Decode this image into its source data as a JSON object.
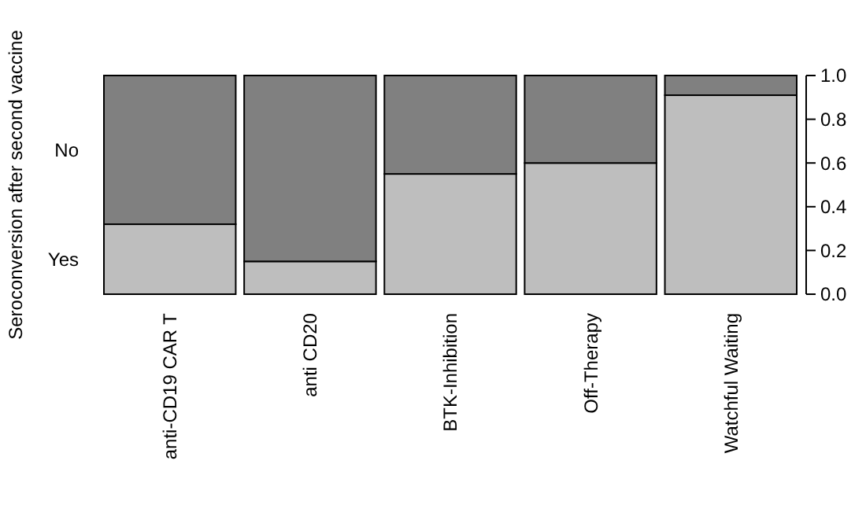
{
  "chart_data": {
    "type": "bar",
    "stacked": true,
    "ylabel": "Seroconversion after second vaccine",
    "categories": [
      "anti-CD19 CAR T",
      "anti CD20",
      "BTK-Inhibition",
      "Off-Therapy",
      "Watchful Waiting"
    ],
    "series": [
      {
        "name": "Yes",
        "color": "#bebebe",
        "values": [
          0.32,
          0.15,
          0.55,
          0.6,
          0.91
        ]
      },
      {
        "name": "No",
        "color": "#808080",
        "values": [
          0.68,
          0.85,
          0.45,
          0.4,
          0.09
        ]
      }
    ],
    "ylim": [
      0,
      1
    ],
    "yticks": [
      {
        "value": 0,
        "label": "0.0"
      },
      {
        "value": 0.2,
        "label": "0.2"
      },
      {
        "value": 0.4,
        "label": "0.4"
      },
      {
        "value": 0.6,
        "label": "0.6"
      },
      {
        "value": 0.8,
        "label": "0.8"
      },
      {
        "value": 1,
        "label": "1.0"
      }
    ],
    "legend": "left",
    "grid": false
  }
}
